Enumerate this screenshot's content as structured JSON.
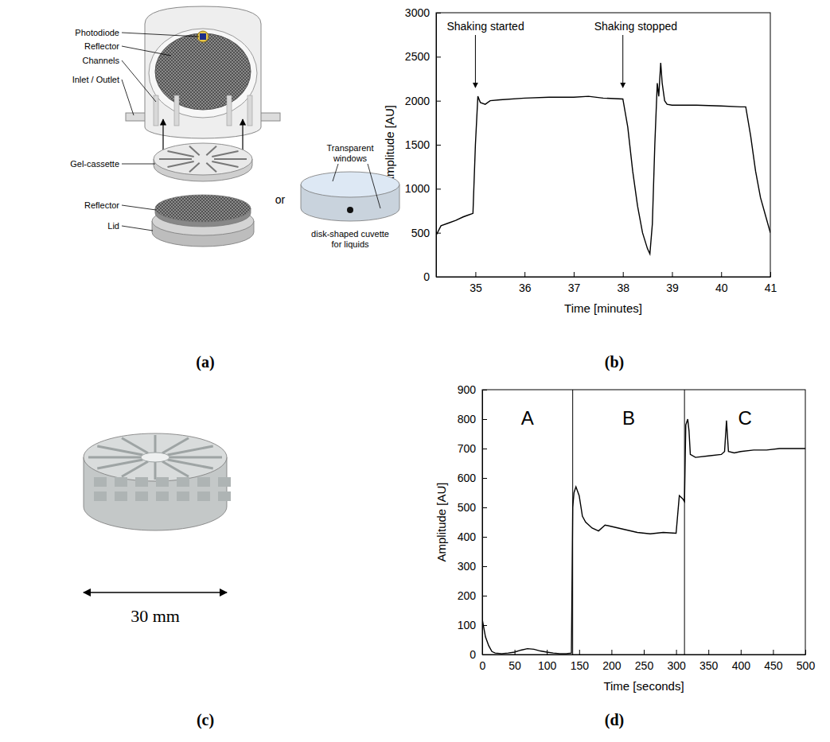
{
  "chart_data": [
    {
      "type": "line",
      "color": "#000000",
      "line_style": "solid",
      "grid": false,
      "x_label": "Time [minutes]",
      "y_label": "Amplitude [AU]",
      "xlim": [
        34.2,
        41
      ],
      "xticks": [
        35,
        36,
        37,
        38,
        39,
        40,
        41
      ],
      "ylim": [
        0,
        3000
      ],
      "yticks": [
        0,
        500,
        1000,
        1500,
        2000,
        2500,
        3000
      ],
      "x": [
        34.2,
        34.3,
        34.45,
        34.6,
        34.75,
        34.85,
        34.95,
        35.0,
        35.05,
        35.1,
        35.2,
        35.3,
        35.5,
        36.0,
        36.5,
        37.0,
        37.3,
        37.6,
        38.0,
        38.1,
        38.2,
        38.3,
        38.4,
        38.5,
        38.55,
        38.6,
        38.65,
        38.7,
        38.73,
        38.77,
        38.8,
        38.85,
        38.9,
        39.0,
        39.5,
        40.0,
        40.4,
        40.5,
        40.6,
        40.7,
        40.8,
        40.9,
        41.0
      ],
      "values": [
        470,
        580,
        610,
        640,
        680,
        700,
        720,
        1500,
        2050,
        1980,
        1960,
        2000,
        2010,
        2030,
        2040,
        2040,
        2050,
        2030,
        2020,
        1700,
        1200,
        800,
        500,
        320,
        260,
        600,
        1500,
        2200,
        2050,
        2430,
        2200,
        2000,
        1960,
        1950,
        1950,
        1940,
        1930,
        1930,
        1600,
        1200,
        900,
        700,
        500
      ],
      "annotations": [
        {
          "text": "Shaking started",
          "x": 35.0,
          "y": 2150
        },
        {
          "text": "Shaking stopped",
          "x": 38.0,
          "y": 2150
        }
      ]
    },
    {
      "type": "line",
      "color": "#000000",
      "line_style": "solid",
      "grid": false,
      "x_label": "Time [seconds]",
      "y_label": "Amplitude [AU]",
      "xlim": [
        0,
        500
      ],
      "xticks": [
        0,
        50,
        100,
        150,
        200,
        250,
        300,
        350,
        400,
        450,
        500
      ],
      "ylim": [
        0,
        900
      ],
      "yticks": [
        0,
        100,
        200,
        300,
        400,
        500,
        600,
        700,
        800,
        900
      ],
      "x": [
        0,
        5,
        10,
        15,
        20,
        30,
        40,
        50,
        60,
        70,
        80,
        90,
        100,
        110,
        120,
        130,
        138,
        140,
        142,
        145,
        150,
        155,
        160,
        170,
        180,
        190,
        200,
        220,
        240,
        260,
        280,
        300,
        305,
        310,
        313,
        315,
        318,
        320,
        322,
        330,
        350,
        370,
        375,
        378,
        381,
        390,
        400,
        420,
        440,
        460,
        480,
        500
      ],
      "values": [
        120,
        60,
        30,
        10,
        5,
        3,
        5,
        8,
        15,
        20,
        18,
        12,
        8,
        5,
        3,
        3,
        5,
        500,
        550,
        570,
        540,
        470,
        450,
        430,
        420,
        440,
        435,
        425,
        415,
        410,
        415,
        412,
        540,
        530,
        520,
        780,
        800,
        760,
        680,
        670,
        675,
        680,
        690,
        795,
        690,
        685,
        690,
        695,
        695,
        700,
        700,
        700
      ],
      "regions": [
        {
          "label": "A",
          "start": 0,
          "end": 140
        },
        {
          "label": "B",
          "start": 140,
          "end": 313
        },
        {
          "label": "C",
          "start": 313,
          "end": 500
        }
      ]
    }
  ],
  "diagram": {
    "housing_labels": [
      "Photodiode",
      "Reflector",
      "Channels",
      "Inlet / Outlet"
    ],
    "cassette_label": "Gel-cassette",
    "or_label": "or",
    "lower_labels": [
      "Reflector",
      "Lid"
    ],
    "window_label": [
      "Transparent",
      "windows"
    ],
    "cuvette_label": [
      "disk-shaped cuvette",
      "for liquids"
    ]
  },
  "photo": {
    "scale_label": "30 mm"
  },
  "panel_labels": [
    "(a)",
    "(b)",
    "(c)",
    "(d)"
  ]
}
